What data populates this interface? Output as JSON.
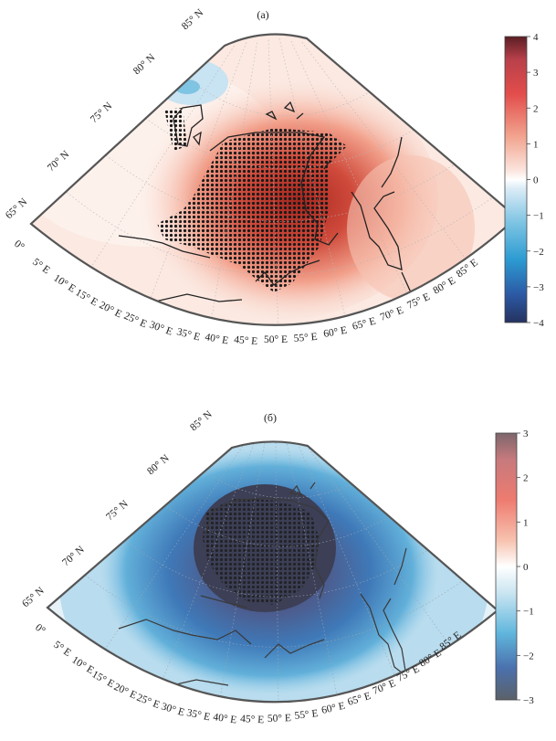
{
  "panels": [
    {
      "id": "a",
      "title": "(a)",
      "lat_labels": [
        "85° N",
        "80° N",
        "75° N",
        "70° N",
        "65° N"
      ],
      "lon_labels": [
        "0°",
        "5° E",
        "10° E",
        "15° E",
        "20° E",
        "25° E",
        "30° E",
        "35° E",
        "40° E",
        "45° E",
        "50° E",
        "55° E",
        "60° E",
        "65° E",
        "70° E",
        "75° E",
        "80° E",
        "85° E"
      ],
      "colorbar": {
        "min": -4,
        "max": 4,
        "tick_labels": [
          "4",
          "3",
          "2",
          "1",
          "0",
          "−1",
          "−2",
          "−3",
          "−4"
        ]
      },
      "anomaly_sign": "warm"
    },
    {
      "id": "b",
      "title": "(б)",
      "lat_labels": [
        "85° N",
        "80° N",
        "75° N",
        "70° N",
        "65° N"
      ],
      "lon_labels": [
        "0°",
        "5° E",
        "10° E",
        "15° E",
        "20° E",
        "25° E",
        "30° E",
        "35° E",
        "40° E",
        "45° E",
        "50° E",
        "55° E",
        "60° E",
        "65° E",
        "70° E",
        "75° E",
        "80° E",
        "85° E"
      ],
      "colorbar": {
        "min": -3,
        "max": 3,
        "tick_labels": [
          "3",
          "2",
          "1",
          "0",
          "−1",
          "−2",
          "−3"
        ]
      },
      "anomaly_sign": "cold"
    }
  ],
  "colors": {
    "outline": "#555555",
    "coast": "#222222",
    "dot": "#1a1a1a"
  }
}
